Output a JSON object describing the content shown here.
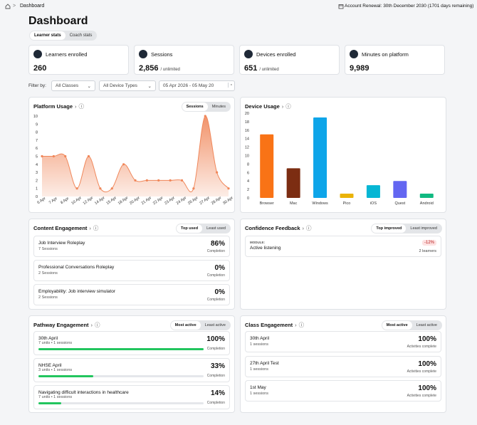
{
  "header": {
    "breadcrumb": "Dashboard",
    "renewal": "Account Renewal: 30th December 2030 (1701 days remaining)"
  },
  "title": "Dashboard",
  "tabs": [
    "Learner stats",
    "Coach stats"
  ],
  "stats": [
    {
      "label": "Learners enrolled",
      "value": "260"
    },
    {
      "label": "Sessions",
      "value": "2,856",
      "suffix": "/ unlimited"
    },
    {
      "label": "Devices enrolled",
      "value": "651",
      "suffix": "/ unlimited"
    },
    {
      "label": "Minutes on platform",
      "value": "9,989"
    }
  ],
  "filters": {
    "label": "Filter by:",
    "classes": "All Classes",
    "devices": "All Device Types",
    "dates": "05 Apr 2026 - 05 May 20"
  },
  "chart_data": [
    {
      "type": "area",
      "title": "Platform Usage",
      "toggle": [
        "Sessions",
        "Minutes"
      ],
      "categories": [
        "6 Apr",
        "7 Apr",
        "8 Apr",
        "10 Apr",
        "12 Apr",
        "14 Apr",
        "15 Apr",
        "18 Apr",
        "20 Apr",
        "21 Apr",
        "22 Apr",
        "23 Apr",
        "24 Apr",
        "26 Apr",
        "27 Apr",
        "28 Apr",
        "30 Apr"
      ],
      "values": [
        5,
        5,
        5,
        1,
        5,
        1,
        1,
        4,
        2,
        2,
        2,
        2,
        2,
        1,
        10,
        3,
        1
      ],
      "color": "#f0875a",
      "ylim": [
        0,
        10
      ],
      "yticks": [
        0,
        1,
        2,
        3,
        4,
        5,
        6,
        7,
        8,
        9,
        10
      ]
    },
    {
      "type": "bar",
      "title": "Device Usage",
      "categories": [
        "Browser",
        "Mac",
        "Windows",
        "Pico",
        "iOS",
        "Quest",
        "Android"
      ],
      "values": [
        15,
        7,
        19,
        1,
        3,
        4,
        1
      ],
      "colors": [
        "#f97316",
        "#7c2d12",
        "#0ea5e9",
        "#eab308",
        "#06b6d4",
        "#6366f1",
        "#10b981"
      ],
      "ylim": [
        0,
        20
      ],
      "yticks": [
        0,
        2,
        4,
        6,
        8,
        10,
        12,
        14,
        16,
        18,
        20
      ]
    }
  ],
  "content_engagement": {
    "title": "Content Engagement",
    "toggle": [
      "Top used",
      "Least used"
    ],
    "items": [
      {
        "name": "Job Interview Roleplay",
        "sub": "7 Sessions",
        "value": "86%",
        "caption": "Completion"
      },
      {
        "name": "Professional Conversations Roleplay",
        "sub": "2 Sessions",
        "value": "0%",
        "caption": "Completion"
      },
      {
        "name": "Employability: Job interview simulator",
        "sub": "2 Sessions",
        "value": "0%",
        "caption": "Completion"
      }
    ]
  },
  "confidence_feedback": {
    "title": "Confidence Feedback",
    "toggle": [
      "Top improved",
      "Least improved"
    ],
    "items": [
      {
        "tag": "MODULE:",
        "name": "Active listening",
        "change": "-12%",
        "learners": "2 learners"
      }
    ]
  },
  "pathway_engagement": {
    "title": "Pathway Engagement",
    "toggle": [
      "Most active",
      "Least active"
    ],
    "items": [
      {
        "name": "30th April",
        "sub": "7 units • 1 sessions",
        "completion": {
          "value": 100,
          "label": "100%"
        },
        "caption": "Completion"
      },
      {
        "name": "NHSE April",
        "sub": "3 units • 1 sessions",
        "completion": {
          "value": 33,
          "label": "33%"
        },
        "caption": "Completion"
      },
      {
        "name": "Navigating difficult interactions in healthcare",
        "sub": "7 units • 1 sessions",
        "completion": {
          "value": 14,
          "label": "14%"
        },
        "caption": "Completion"
      }
    ]
  },
  "class_engagement": {
    "title": "Class Engagement",
    "toggle": [
      "Most active",
      "Least active"
    ],
    "items": [
      {
        "name": "30th April",
        "sub": "1 sessions",
        "value": "100%",
        "caption": "Activities complete"
      },
      {
        "name": "27th April Test",
        "sub": "1 sessions",
        "value": "100%",
        "caption": "Activities complete"
      },
      {
        "name": "1st May",
        "sub": "1 sessions",
        "value": "100%",
        "caption": "Activities complete"
      }
    ]
  }
}
